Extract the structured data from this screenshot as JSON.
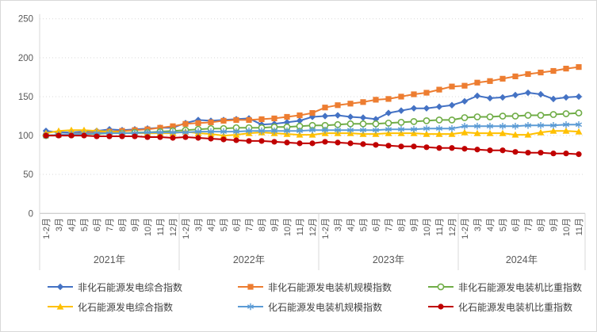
{
  "chart_data": {
    "type": "line",
    "title": "",
    "ylim": [
      0,
      250
    ],
    "y_ticks": [
      0,
      50,
      100,
      150,
      200,
      250
    ],
    "grid": "horizontal-dotted",
    "legend_position": "bottom",
    "axis_text_color": "#595959",
    "grid_color": "#d9d9d9",
    "year_groups": [
      {
        "label": "2021年",
        "months": [
          "1-2月",
          "3月",
          "4月",
          "5月",
          "6月",
          "7月",
          "8月",
          "9月",
          "10月",
          "11月",
          "12月"
        ]
      },
      {
        "label": "2022年",
        "months": [
          "1-2月",
          "3月",
          "4月",
          "5月",
          "6月",
          "7月",
          "8月",
          "9月",
          "10月",
          "11月",
          "12月"
        ]
      },
      {
        "label": "2023年",
        "months": [
          "1-2月",
          "3月",
          "4月",
          "5月",
          "6月",
          "7月",
          "8月",
          "9月",
          "10月",
          "11月",
          "12月"
        ]
      },
      {
        "label": "2024年",
        "months": [
          "1-2月",
          "3月",
          "4月",
          "5月",
          "6月",
          "7月",
          "8月",
          "9月",
          "10月",
          "11月"
        ]
      }
    ],
    "series": [
      {
        "name": "非化石能源发电综合指数",
        "color": "#4472C4",
        "marker": "diamond",
        "values": [
          106,
          104,
          104,
          105,
          106,
          108,
          107,
          108,
          109,
          110,
          110,
          116,
          120,
          119,
          120,
          121,
          122,
          114,
          115,
          117,
          119,
          124,
          125,
          126,
          124,
          123,
          121,
          129,
          132,
          135,
          135,
          137,
          139,
          144,
          151,
          148,
          149,
          152,
          155,
          153,
          147,
          149,
          150
        ]
      },
      {
        "name": "非化石能源发电装机规模指数",
        "color": "#ED7D31",
        "marker": "square",
        "values": [
          100,
          101,
          102,
          103,
          104,
          105,
          106,
          107,
          108,
          110,
          112,
          115,
          116,
          117,
          119,
          120,
          120,
          121,
          122,
          124,
          126,
          129,
          136,
          139,
          141,
          143,
          146,
          147,
          150,
          153,
          155,
          159,
          163,
          164,
          168,
          170,
          173,
          176,
          179,
          181,
          183,
          186,
          188
        ]
      },
      {
        "name": "非化石能源发电装机比重指数",
        "color": "#70AD47",
        "marker": "circle-open",
        "values": [
          100,
          101,
          101,
          102,
          102,
          103,
          103,
          104,
          104,
          105,
          106,
          107,
          108,
          109,
          109,
          110,
          110,
          110,
          111,
          111,
          112,
          113,
          113,
          114,
          115,
          115,
          115,
          116,
          117,
          118,
          119,
          120,
          120,
          123,
          124,
          124,
          125,
          125,
          126,
          126,
          127,
          128,
          129
        ]
      },
      {
        "name": "化石能源发电综合指数",
        "color": "#FFC000",
        "marker": "triangle",
        "values": [
          103,
          106,
          107,
          107,
          106,
          105,
          104,
          103,
          103,
          103,
          103,
          105,
          103,
          102,
          100,
          101,
          103,
          104,
          103,
          102,
          101,
          101,
          103,
          103,
          103,
          102,
          102,
          103,
          103,
          103,
          102,
          102,
          102,
          104,
          103,
          103,
          103,
          101,
          101,
          104,
          106,
          106,
          105
        ]
      },
      {
        "name": "化石能源发电装机规模指数",
        "color": "#5B9BD5",
        "marker": "asterisk",
        "values": [
          100,
          101,
          102,
          102,
          103,
          103,
          103,
          103,
          104,
          104,
          104,
          104,
          105,
          105,
          105,
          105,
          106,
          106,
          106,
          106,
          106,
          107,
          107,
          107,
          107,
          107,
          107,
          108,
          108,
          108,
          109,
          109,
          109,
          112,
          112,
          112,
          112,
          112,
          113,
          113,
          113,
          114,
          114
        ]
      },
      {
        "name": "化石能源发电装机比重指数",
        "color": "#C00000",
        "marker": "circle",
        "values": [
          100,
          100,
          100,
          100,
          99,
          99,
          99,
          99,
          98,
          98,
          97,
          98,
          97,
          96,
          95,
          94,
          93,
          93,
          92,
          91,
          90,
          90,
          92,
          91,
          90,
          89,
          88,
          87,
          86,
          86,
          85,
          84,
          84,
          83,
          82,
          81,
          81,
          79,
          78,
          78,
          77,
          77,
          76
        ]
      }
    ]
  }
}
